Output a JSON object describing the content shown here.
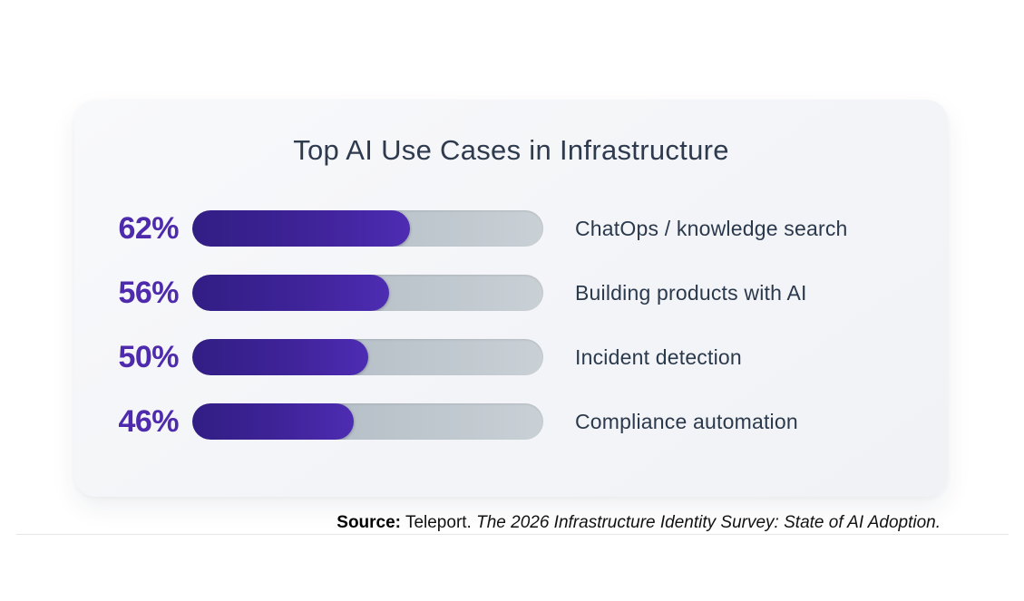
{
  "chart_data": {
    "type": "bar",
    "orientation": "horizontal",
    "title": "Top AI Use Cases in Infrastructure",
    "categories": [
      "ChatOps / knowledge search",
      "Building products with AI",
      "Incident detection",
      "Compliance automation"
    ],
    "values": [
      62,
      56,
      50,
      46
    ],
    "value_format": "percent",
    "xlim": [
      0,
      100
    ],
    "grid": false,
    "legend": false
  },
  "title": "Top AI Use Cases in Infrastructure",
  "rows": [
    {
      "pct": "62%",
      "value": 62,
      "label": "ChatOps / knowledge search"
    },
    {
      "pct": "56%",
      "value": 56,
      "label": "Building products with AI"
    },
    {
      "pct": "50%",
      "value": 50,
      "label": "Incident detection"
    },
    {
      "pct": "46%",
      "value": 46,
      "label": "Compliance automation"
    }
  ],
  "source": {
    "prefix": "Source:",
    "publisher": " Teleport. ",
    "citation": "The 2026 Infrastructure Identity Survey: State of AI Adoption."
  },
  "colors": {
    "bar_fill_start": "#311e84",
    "bar_fill_end": "#4d2cb2",
    "track_start": "#a9b4bd",
    "track_end": "#c9d0d6",
    "pct_text": "#4e2aac",
    "label_text": "#2b394c",
    "title_text": "#2e3a4e",
    "card_bg": "#f4f5f8"
  }
}
